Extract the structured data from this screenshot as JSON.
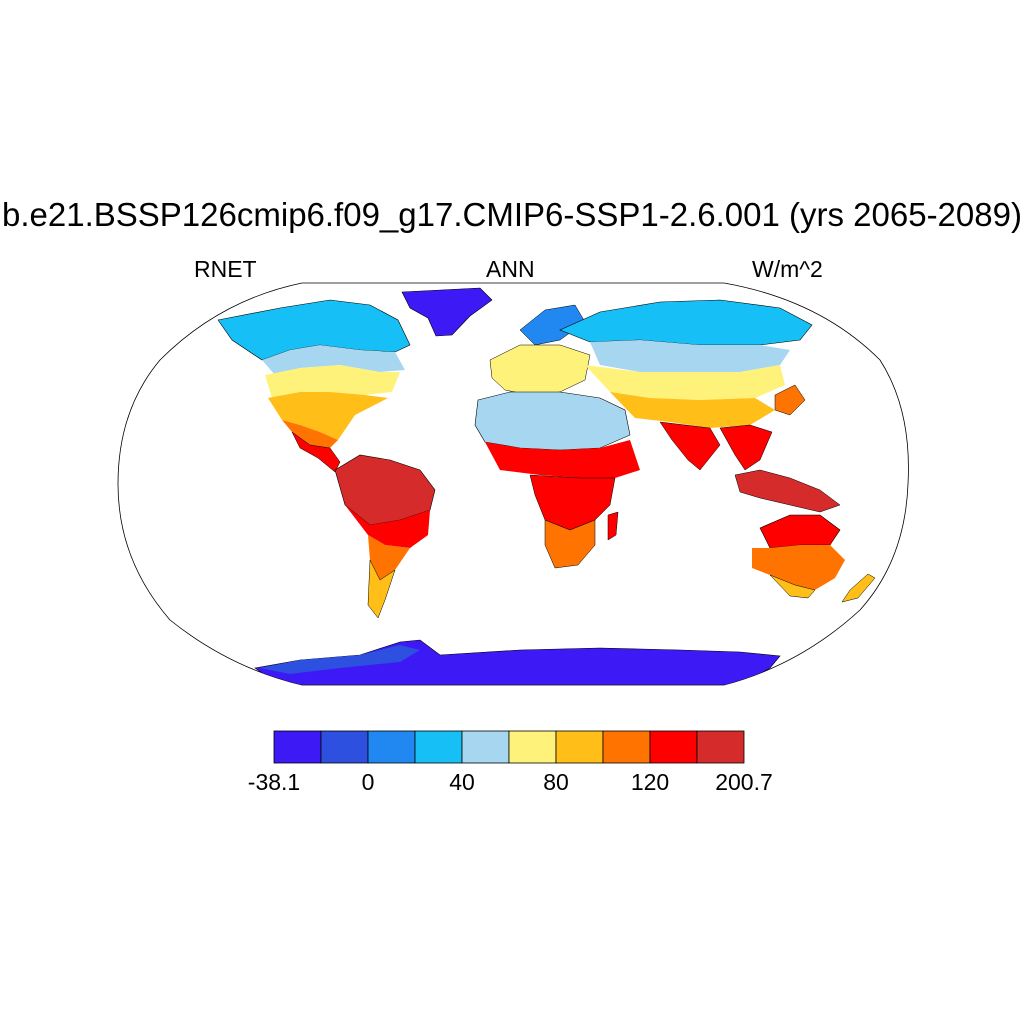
{
  "title": "b.e21.BSSP126cmip6.f09_g17.CMIP6-SSP1-2.6.001 (yrs 2065-2089)",
  "variable": "RNET",
  "season": "ANN",
  "units": "W/m^2",
  "colorbar": {
    "colors": [
      "#3c19f5",
      "#2d50e0",
      "#2088f0",
      "#16bff5",
      "#a6d6f0",
      "#fff27a",
      "#ffbf18",
      "#ff7400",
      "#ff0000",
      "#d52b2b"
    ],
    "labels": [
      "-38.1",
      "0",
      "40",
      "80",
      "120",
      "200.7"
    ]
  }
}
